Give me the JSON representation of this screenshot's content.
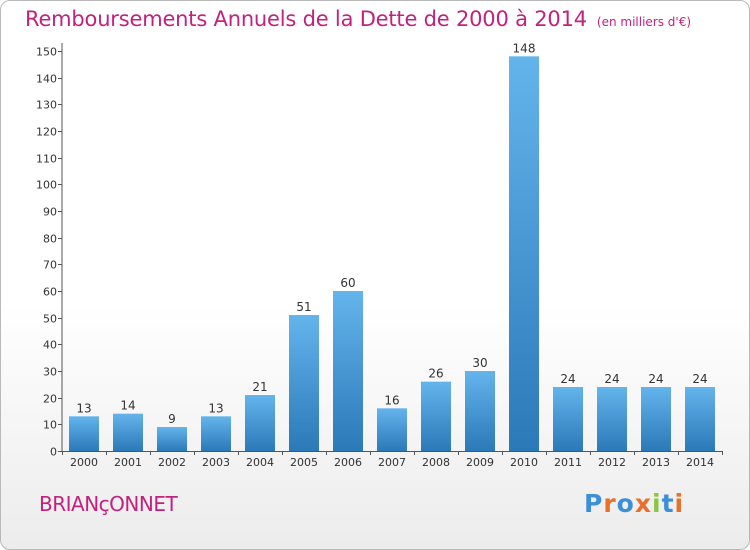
{
  "title": "Remboursements Annuels de la Dette de 2000 à 2014",
  "unit": "(en milliers d'€)",
  "city": "BRIANçONNET",
  "logo": {
    "text": "Proxiti",
    "colors": [
      "#3a8fd8",
      "#e8702a",
      "#3a8fd8",
      "#e8702a",
      "#8cc63f",
      "#3a8fd8",
      "#e8702a"
    ]
  },
  "colors": {
    "title": "#c2227d",
    "bar_light": "#64b4ec",
    "bar_dark": "#2b79b8"
  },
  "chart_data": {
    "type": "bar",
    "title": "Remboursements Annuels de la Dette de 2000 à 2014",
    "xlabel": "",
    "ylabel": "",
    "categories": [
      "2000",
      "2001",
      "2002",
      "2003",
      "2004",
      "2005",
      "2006",
      "2007",
      "2008",
      "2009",
      "2010",
      "2011",
      "2012",
      "2013",
      "2014"
    ],
    "values": [
      13,
      14,
      9,
      13,
      21,
      51,
      60,
      16,
      26,
      30,
      148,
      24,
      24,
      24,
      24
    ],
    "ylim": [
      0,
      150
    ],
    "yticks": [
      0,
      10,
      20,
      30,
      40,
      50,
      60,
      70,
      80,
      90,
      100,
      110,
      120,
      130,
      140,
      150
    ],
    "grid": false,
    "legend": "none"
  }
}
